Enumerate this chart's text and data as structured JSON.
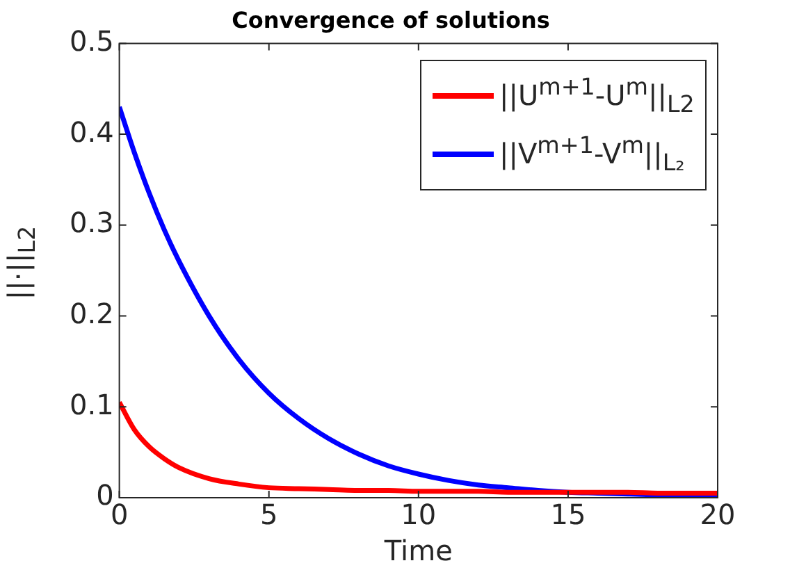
{
  "chart_data": {
    "type": "line",
    "title": "Convergence of solutions",
    "xlabel": "Time",
    "ylabel": "||·||$_{L2}$",
    "x": [
      0,
      0.5,
      1,
      1.5,
      2,
      3,
      4,
      5,
      6,
      7,
      8,
      9,
      10,
      11,
      12,
      13,
      14,
      15,
      16,
      17,
      18,
      19,
      20
    ],
    "series": [
      {
        "name": "||U$^{m+1}$-U$^{m}$||$_{L2}$",
        "color": "#ff0000",
        "values": [
          0.105,
          0.075,
          0.056,
          0.043,
          0.033,
          0.021,
          0.015,
          0.011,
          0.01,
          0.009,
          0.008,
          0.008,
          0.007,
          0.007,
          0.007,
          0.006,
          0.006,
          0.006,
          0.006,
          0.006,
          0.005,
          0.005,
          0.005
        ]
      },
      {
        "name": "||V$^{m+1}$-V$^{m}$||$_{L₂}$",
        "color": "#0000ff",
        "values": [
          0.43,
          0.38,
          0.335,
          0.295,
          0.26,
          0.2,
          0.152,
          0.115,
          0.087,
          0.065,
          0.048,
          0.035,
          0.026,
          0.019,
          0.014,
          0.011,
          0.008,
          0.006,
          0.005,
          0.004,
          0.003,
          0.002,
          0.001
        ]
      }
    ],
    "xlim": [
      0,
      20
    ],
    "xticks": [
      0,
      5,
      10,
      15,
      20
    ],
    "ylim": [
      0,
      0.5
    ],
    "yticks": [
      0,
      0.1,
      0.2,
      0.3,
      0.4,
      0.5
    ],
    "grid": false,
    "legend": "top right",
    "marker": "none",
    "line_style": "solid"
  }
}
